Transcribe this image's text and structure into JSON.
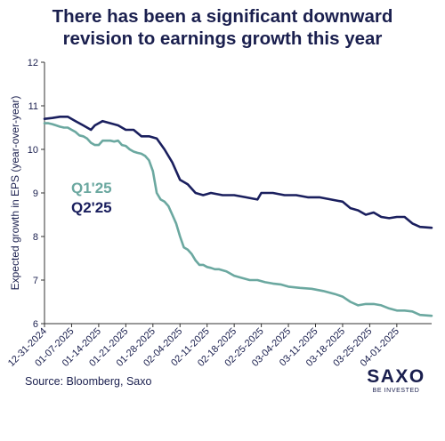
{
  "title_lines": [
    "There has been a significant downward",
    "revision to earnings growth this year"
  ],
  "source": "Source: Bloomberg, Saxo",
  "logo": {
    "name": "SAXO",
    "tagline": "BE INVESTED"
  },
  "colors": {
    "q1": "#6ba8a0",
    "q2": "#1a1f5e",
    "text": "#1a1f4e",
    "axis": "#333333"
  },
  "chart_data": {
    "type": "line",
    "title": "There has been a significant downward revision to earnings growth this year",
    "xlabel": "",
    "ylabel": "Expected growth in EPS (year-over-year)",
    "ylim": [
      6,
      12
    ],
    "yticks": [
      6,
      7,
      8,
      9,
      10,
      11,
      12
    ],
    "xlim": [
      "12-31-2024",
      "04-10-2025"
    ],
    "xticks": [
      "12-31-2024",
      "01-07-2025",
      "01-14-2025",
      "01-21-2025",
      "01-28-2025",
      "02-04-2025",
      "02-11-2025",
      "02-18-2025",
      "02-25-2025",
      "03-04-2025",
      "03-11-2025",
      "03-18-2025",
      "03-25-2025",
      "04-01-2025"
    ],
    "grid": false,
    "legend": "inline, left-center",
    "series": [
      {
        "name": "Q1'25",
        "color": "#6ba8a0",
        "x": [
          "12-31-2024",
          "01-01-2025",
          "01-02-2025",
          "01-03-2025",
          "01-04-2025",
          "01-05-2025",
          "01-06-2025",
          "01-07-2025",
          "01-08-2025",
          "01-09-2025",
          "01-10-2025",
          "01-11-2025",
          "01-12-2025",
          "01-13-2025",
          "01-14-2025",
          "01-15-2025",
          "01-16-2025",
          "01-17-2025",
          "01-18-2025",
          "01-19-2025",
          "01-20-2025",
          "01-21-2025",
          "01-22-2025",
          "01-23-2025",
          "01-24-2025",
          "01-25-2025",
          "01-26-2025",
          "01-27-2025",
          "01-28-2025",
          "01-29-2025",
          "01-30-2025",
          "01-31-2025",
          "02-01-2025",
          "02-02-2025",
          "02-03-2025",
          "02-04-2025",
          "02-05-2025",
          "02-06-2025",
          "02-07-2025",
          "02-08-2025",
          "02-09-2025",
          "02-10-2025",
          "02-11-2025",
          "02-12-2025",
          "02-13-2025",
          "02-14-2025",
          "02-16-2025",
          "02-18-2025",
          "02-20-2025",
          "02-22-2025",
          "02-24-2025",
          "02-26-2025",
          "02-28-2025",
          "03-02-2025",
          "03-04-2025",
          "03-07-2025",
          "03-10-2025",
          "03-13-2025",
          "03-16-2025",
          "03-18-2025",
          "03-20-2025",
          "03-22-2025",
          "03-24-2025",
          "03-26-2025",
          "03-28-2025",
          "03-30-2025",
          "04-01-2025",
          "04-03-2025",
          "04-05-2025",
          "04-07-2025",
          "04-10-2025"
        ],
        "values": [
          10.6,
          10.6,
          10.58,
          10.55,
          10.52,
          10.5,
          10.5,
          10.45,
          10.4,
          10.32,
          10.3,
          10.25,
          10.15,
          10.1,
          10.1,
          10.2,
          10.2,
          10.2,
          10.18,
          10.2,
          10.1,
          10.08,
          10.0,
          9.95,
          9.92,
          9.9,
          9.85,
          9.75,
          9.5,
          9.0,
          8.85,
          8.8,
          8.7,
          8.5,
          8.3,
          8.0,
          7.75,
          7.7,
          7.6,
          7.45,
          7.35,
          7.35,
          7.3,
          7.28,
          7.25,
          7.25,
          7.2,
          7.1,
          7.05,
          7.0,
          7.0,
          6.95,
          6.92,
          6.9,
          6.85,
          6.82,
          6.8,
          6.75,
          6.68,
          6.62,
          6.5,
          6.42,
          6.45,
          6.45,
          6.42,
          6.35,
          6.3,
          6.3,
          6.28,
          6.2,
          6.18
        ]
      },
      {
        "name": "Q2'25",
        "color": "#1a1f5e",
        "x": [
          "12-31-2024",
          "01-02-2025",
          "01-04-2025",
          "01-06-2025",
          "01-08-2025",
          "01-10-2025",
          "01-12-2025",
          "01-13-2025",
          "01-15-2025",
          "01-17-2025",
          "01-19-2025",
          "01-21-2025",
          "01-23-2025",
          "01-25-2025",
          "01-27-2025",
          "01-29-2025",
          "01-31-2025",
          "02-02-2025",
          "02-04-2025",
          "02-06-2025",
          "02-08-2025",
          "02-10-2025",
          "02-12-2025",
          "02-15-2025",
          "02-18-2025",
          "02-21-2025",
          "02-24-2025",
          "02-25-2025",
          "02-28-2025",
          "03-03-2025",
          "03-06-2025",
          "03-09-2025",
          "03-12-2025",
          "03-15-2025",
          "03-18-2025",
          "03-20-2025",
          "03-22-2025",
          "03-24-2025",
          "03-26-2025",
          "03-28-2025",
          "03-30-2025",
          "04-01-2025",
          "04-03-2025",
          "04-05-2025",
          "04-07-2025",
          "04-10-2025"
        ],
        "values": [
          10.7,
          10.72,
          10.75,
          10.75,
          10.65,
          10.55,
          10.45,
          10.55,
          10.65,
          10.6,
          10.55,
          10.45,
          10.45,
          10.3,
          10.3,
          10.25,
          10.0,
          9.7,
          9.3,
          9.2,
          9.0,
          8.95,
          9.0,
          8.95,
          8.95,
          8.9,
          8.85,
          9.0,
          9.0,
          8.95,
          8.95,
          8.9,
          8.9,
          8.85,
          8.8,
          8.65,
          8.6,
          8.5,
          8.55,
          8.45,
          8.42,
          8.45,
          8.45,
          8.3,
          8.22,
          8.2
        ]
      }
    ]
  }
}
